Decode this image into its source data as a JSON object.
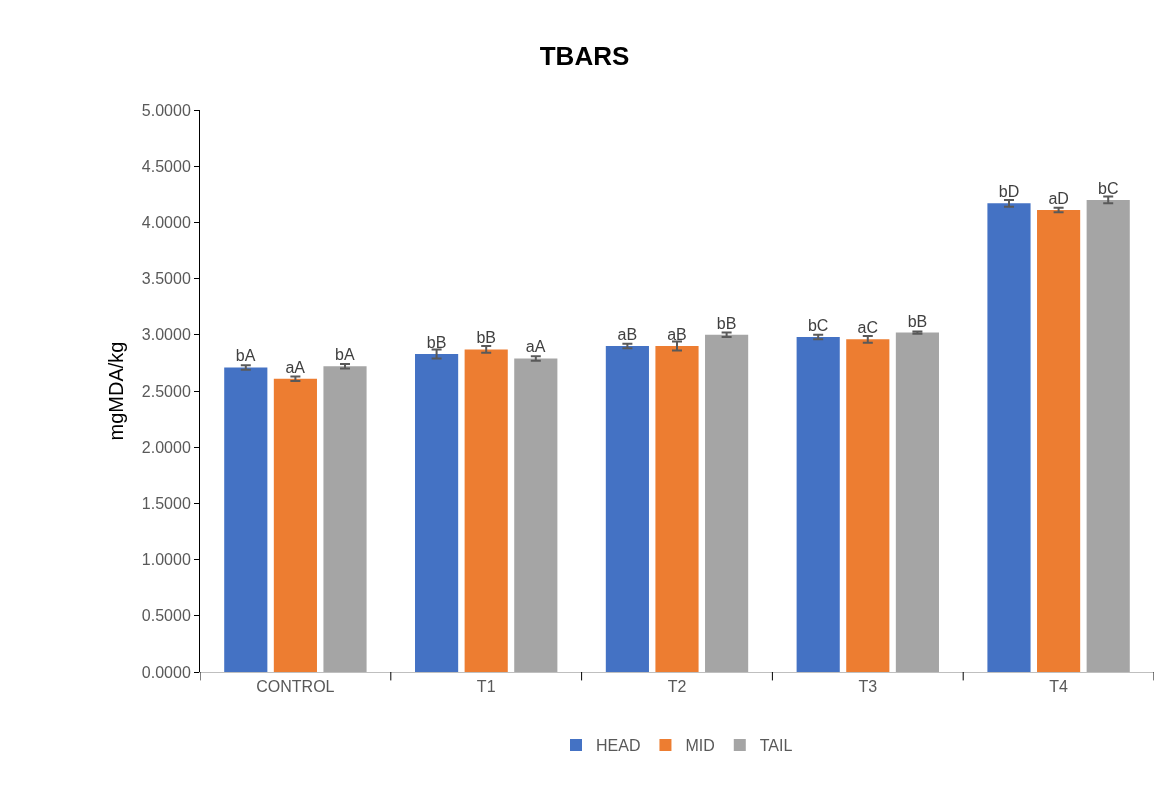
{
  "chart_data": {
    "type": "bar",
    "title": "TBARS",
    "ylabel": "mgMDA/kg",
    "categories": [
      "CONTROL",
      "T1",
      "T2",
      "T3",
      "T4"
    ],
    "series": [
      {
        "name": "HEAD",
        "color": "#4472c4",
        "values": [
          2.71,
          2.83,
          2.9,
          2.98,
          4.17
        ],
        "errors": [
          0.02,
          0.04,
          0.02,
          0.02,
          0.03
        ],
        "value_labels": [
          "bA",
          "bB",
          "aB",
          "bC",
          "bD"
        ]
      },
      {
        "name": "MID",
        "color": "#ed7d31",
        "values": [
          2.61,
          2.87,
          2.9,
          2.96,
          4.11
        ],
        "errors": [
          0.02,
          0.03,
          0.04,
          0.03,
          0.02
        ],
        "value_labels": [
          "aA",
          "bB",
          "aB",
          "aC",
          "aD"
        ]
      },
      {
        "name": "TAIL",
        "color": "#a5a5a5",
        "values": [
          2.72,
          2.79,
          3.0,
          3.02,
          4.2
        ],
        "errors": [
          0.02,
          0.02,
          0.02,
          0.01,
          0.03
        ],
        "value_labels": [
          "bA",
          "aA",
          "bB",
          "bB",
          "bC"
        ]
      }
    ],
    "ylim": [
      0,
      5
    ],
    "yticks": [
      {
        "value": 0,
        "label": "0.0000"
      },
      {
        "value": 0.5,
        "label": "0.5000"
      },
      {
        "value": 1,
        "label": "1.0000"
      },
      {
        "value": 1.5,
        "label": "1.5000"
      },
      {
        "value": 2,
        "label": "2.0000"
      },
      {
        "value": 2.5,
        "label": "2.5000"
      },
      {
        "value": 3,
        "label": "3.0000"
      },
      {
        "value": 3.5,
        "label": "3.5000"
      },
      {
        "value": 4,
        "label": "4.0000"
      },
      {
        "value": 4.5,
        "label": "4.5000"
      },
      {
        "value": 5,
        "label": "5.0000"
      }
    ],
    "grid": false,
    "legend": "bottom"
  }
}
